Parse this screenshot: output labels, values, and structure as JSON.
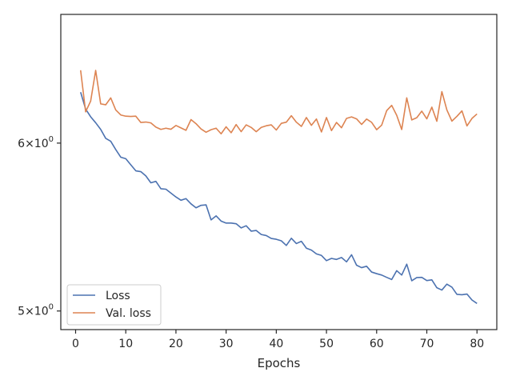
{
  "chart_data": {
    "type": "line",
    "title": "",
    "xlabel": "Epochs",
    "ylabel": "",
    "x_scale": "linear",
    "y_scale": "log",
    "xlim": [
      -2.95,
      83.95
    ],
    "ylim": [
      4.9,
      6.9
    ],
    "x_ticks": [
      0,
      10,
      20,
      30,
      40,
      50,
      60,
      70,
      80
    ],
    "y_ticks": [
      {
        "value": 5.0,
        "label_base": "5",
        "label_exp": "0"
      },
      {
        "value": 6.0,
        "label_base": "6",
        "label_exp": "0"
      }
    ],
    "grid": false,
    "legend_position": "lower left",
    "x": [
      1,
      2,
      3,
      4,
      5,
      6,
      7,
      8,
      9,
      10,
      11,
      12,
      13,
      14,
      15,
      16,
      17,
      18,
      19,
      20,
      21,
      22,
      23,
      24,
      25,
      26,
      27,
      28,
      29,
      30,
      31,
      32,
      33,
      34,
      35,
      36,
      37,
      38,
      39,
      40,
      41,
      42,
      43,
      44,
      45,
      46,
      47,
      48,
      49,
      50,
      51,
      52,
      53,
      54,
      55,
      56,
      57,
      58,
      59,
      60,
      61,
      62,
      63,
      64,
      65,
      66,
      67,
      68,
      69,
      70,
      71,
      72,
      73,
      74,
      75,
      76,
      77,
      78,
      79,
      80
    ],
    "series": [
      {
        "name": "Loss",
        "color": "#4c72b0",
        "values": [
          6.341,
          6.226,
          6.174,
          6.134,
          6.09,
          6.031,
          6.012,
          5.958,
          5.909,
          5.899,
          5.86,
          5.822,
          5.817,
          5.79,
          5.747,
          5.756,
          5.71,
          5.707,
          5.683,
          5.659,
          5.639,
          5.649,
          5.617,
          5.593,
          5.608,
          5.611,
          5.52,
          5.544,
          5.513,
          5.501,
          5.501,
          5.497,
          5.472,
          5.485,
          5.453,
          5.457,
          5.433,
          5.427,
          5.41,
          5.405,
          5.396,
          5.369,
          5.411,
          5.38,
          5.393,
          5.353,
          5.342,
          5.32,
          5.311,
          5.281,
          5.294,
          5.288,
          5.299,
          5.274,
          5.315,
          5.255,
          5.241,
          5.249,
          5.216,
          5.207,
          5.199,
          5.186,
          5.174,
          5.224,
          5.199,
          5.261,
          5.167,
          5.185,
          5.186,
          5.168,
          5.172,
          5.128,
          5.115,
          5.148,
          5.131,
          5.091,
          5.089,
          5.093,
          5.06,
          5.041
        ]
      },
      {
        "name": "Val. loss",
        "color": "#dd8452",
        "values": [
          6.494,
          6.207,
          6.28,
          6.493,
          6.261,
          6.255,
          6.302,
          6.22,
          6.186,
          6.178,
          6.176,
          6.178,
          6.136,
          6.139,
          6.133,
          6.105,
          6.09,
          6.098,
          6.091,
          6.116,
          6.1,
          6.084,
          6.155,
          6.128,
          6.093,
          6.071,
          6.088,
          6.098,
          6.061,
          6.107,
          6.068,
          6.122,
          6.075,
          6.12,
          6.103,
          6.075,
          6.103,
          6.114,
          6.12,
          6.086,
          6.13,
          6.138,
          6.181,
          6.138,
          6.11,
          6.169,
          6.117,
          6.159,
          6.073,
          6.169,
          6.082,
          6.136,
          6.101,
          6.163,
          6.173,
          6.16,
          6.123,
          6.159,
          6.137,
          6.088,
          6.118,
          6.215,
          6.251,
          6.184,
          6.089,
          6.302,
          6.153,
          6.168,
          6.212,
          6.16,
          6.239,
          6.144,
          6.345,
          6.22,
          6.145,
          6.177,
          6.214,
          6.113,
          6.163,
          6.193
        ]
      }
    ]
  }
}
